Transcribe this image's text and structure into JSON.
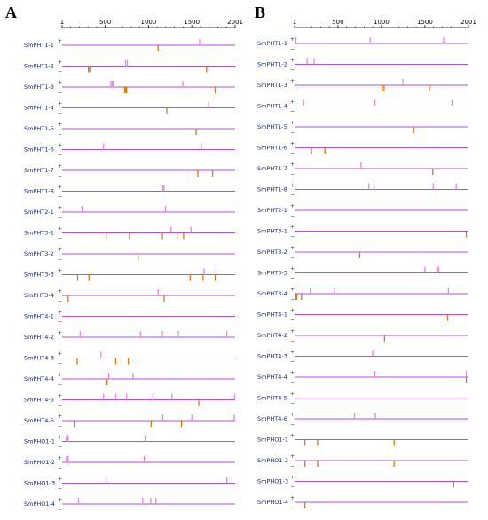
{
  "panels": {
    "A": {
      "letter": "A",
      "axis_ticks": [
        "1",
        "500",
        "1000",
        "1500",
        "2001"
      ],
      "genes": [
        {
          "name": "SmPHT1-1",
          "plus": [
            1590
          ],
          "minus": [
            1110
          ]
        },
        {
          "name": "SmPHT1-2",
          "plus": [
            735,
            755
          ],
          "minus": [
            305,
            320,
            1670
          ]
        },
        {
          "name": "SmPHT1-3",
          "plus": [
            565,
            580,
            590,
            1395
          ],
          "minus": [
            725,
            735,
            745,
            1770
          ]
        },
        {
          "name": "SmPHT1-4",
          "plus": [
            1695
          ],
          "minus": [
            1210
          ]
        },
        {
          "name": "SmPHT1-5",
          "plus": [],
          "minus": [
            1550
          ]
        },
        {
          "name": "SmPHT1-6",
          "plus": [
            480,
            1610
          ],
          "minus": []
        },
        {
          "name": "SmPHT1-7",
          "plus": [],
          "minus": [
            1570,
            1740
          ]
        },
        {
          "name": "SmPHT1-8",
          "plus": [
            1165,
            1180
          ],
          "minus": []
        },
        {
          "name": "SmPHT2-1",
          "plus": [
            230,
            1195
          ],
          "minus": []
        },
        {
          "name": "SmPHT3-1",
          "plus": [
            1260,
            1490
          ],
          "minus": [
            510,
            780,
            1160,
            1330,
            1405
          ]
        },
        {
          "name": "SmPHT3-2",
          "plus": [],
          "minus": [
            880
          ]
        },
        {
          "name": "SmPHT3-3",
          "plus": [
            1640,
            1780
          ],
          "minus": [
            180,
            310,
            1480,
            1630,
            1770
          ]
        },
        {
          "name": "SmPHT3-4",
          "plus": [
            1110
          ],
          "minus": [
            70,
            1180
          ]
        },
        {
          "name": "SmPHT4-1",
          "plus": [],
          "minus": []
        },
        {
          "name": "SmPHT4-2",
          "plus": [
            210,
            905,
            1160,
            1345,
            1905
          ],
          "minus": []
        },
        {
          "name": "SmPHT4-3",
          "plus": [
            450
          ],
          "minus": [
            175,
            620,
            765
          ]
        },
        {
          "name": "SmPHT4-4",
          "plus": [
            540,
            820
          ],
          "minus": [
            520
          ]
        },
        {
          "name": "SmPHT4-5",
          "plus": [
            480,
            620,
            745,
            1050,
            1270,
            1995
          ],
          "minus": [
            1580
          ]
        },
        {
          "name": "SmPHT4-6",
          "plus": [
            1165,
            1500,
            1990
          ],
          "minus": [
            140,
            1030,
            1380
          ]
        },
        {
          "name": "SmPHO1-1",
          "plus": [
            50,
            60,
            70,
            960
          ],
          "minus": []
        },
        {
          "name": "SmPHO1-2",
          "plus": [
            50,
            60,
            70,
            950
          ],
          "minus": []
        },
        {
          "name": "SmPHO1-3",
          "plus": [
            510,
            1905
          ],
          "minus": []
        },
        {
          "name": "SmPHO1-4",
          "plus": [
            190,
            930,
            1025,
            1085
          ],
          "minus": []
        }
      ]
    },
    "B": {
      "letter": "B",
      "axis_ticks": [
        "1",
        "500",
        "1000",
        "1500",
        "2001"
      ],
      "genes": [
        {
          "name": "SmPHT1-1",
          "plus": [
            15,
            870,
            1715
          ],
          "minus": []
        },
        {
          "name": "SmPHT1-2",
          "plus": [
            145,
            225
          ],
          "minus": []
        },
        {
          "name": "SmPHT1-3",
          "plus": [
            1245
          ],
          "minus": [
            1010,
            1030,
            1550
          ]
        },
        {
          "name": "SmPHT1-4",
          "plus": [
            105,
            925,
            1810
          ],
          "minus": []
        },
        {
          "name": "SmPHT1-5",
          "plus": [],
          "minus": [
            1370
          ]
        },
        {
          "name": "SmPHT1-6",
          "plus": [],
          "minus": [
            195,
            350
          ]
        },
        {
          "name": "SmPHT1-7",
          "plus": [
            765
          ],
          "minus": [
            1590
          ]
        },
        {
          "name": "SmPHT1-8",
          "plus": [
            855,
            915,
            1595,
            1860
          ],
          "minus": []
        },
        {
          "name": "SmPHT2-1",
          "plus": [],
          "minus": []
        },
        {
          "name": "SmPHT3-1",
          "plus": [],
          "minus": [
            1975
          ]
        },
        {
          "name": "SmPHT3-2",
          "plus": [],
          "minus": [
            750
          ]
        },
        {
          "name": "SmPHT3-3",
          "plus": [
            1500,
            1640,
            1655
          ],
          "minus": []
        },
        {
          "name": "SmPHT3-4",
          "plus": [
            180,
            460,
            1770
          ],
          "minus": [
            15,
            25,
            80
          ]
        },
        {
          "name": "SmPHT4-1",
          "plus": [],
          "minus": [
            1760
          ]
        },
        {
          "name": "SmPHT4-2",
          "plus": [],
          "minus": [
            1035
          ]
        },
        {
          "name": "SmPHT4-3",
          "plus": [
            900
          ],
          "minus": []
        },
        {
          "name": "SmPHT4-4",
          "plus": [
            925,
            1975
          ],
          "minus": [
            1975
          ]
        },
        {
          "name": "SmPHT4-5",
          "plus": [],
          "minus": []
        },
        {
          "name": "SmPHT4-6",
          "plus": [
            690,
            930
          ],
          "minus": []
        },
        {
          "name": "SmPHO1-1",
          "plus": [],
          "minus": [
            120,
            265,
            1145
          ]
        },
        {
          "name": "SmPHO1-2",
          "plus": [],
          "minus": [
            120,
            265,
            1145
          ]
        },
        {
          "name": "SmPHO1-3",
          "plus": [],
          "minus": [
            1830
          ]
        },
        {
          "name": "SmPHO1-4",
          "plus": [],
          "minus": [
            120
          ]
        }
      ]
    }
  },
  "strand_symbols": {
    "plus": "+",
    "minus": "−"
  },
  "colors": {
    "line": "#b44fd8",
    "plus": "#ee82ee",
    "minus": "#e8760a",
    "label": "#1a237e"
  }
}
